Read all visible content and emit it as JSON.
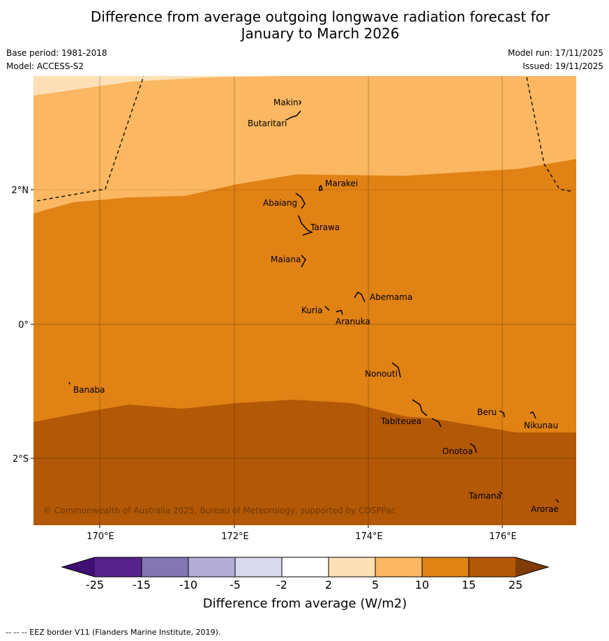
{
  "title_line1": "Difference from average outgoing longwave radiation forecast for",
  "title_line2": "January to March 2026",
  "base_period": "Base period: 1981-2018",
  "model": "Model: ACCESS-S2",
  "model_run": "Model run: 17/11/2025",
  "issued": "Issued: 19/11/2025",
  "copyright": "© Commonwealth of Australia 2025, Bureau of Meteorology, supported by COSPPac",
  "lon_ticks": [
    "170°E",
    "172°E",
    "174°E",
    "176°E"
  ],
  "lat_ticks": [
    "2°N",
    "0°",
    "2°S"
  ],
  "places": [
    {
      "name": "Makin"
    },
    {
      "name": "Butaritari"
    },
    {
      "name": "Marakei"
    },
    {
      "name": "Abaiang"
    },
    {
      "name": "Tarawa"
    },
    {
      "name": "Maiana"
    },
    {
      "name": "Abemama"
    },
    {
      "name": "Kuria"
    },
    {
      "name": "Aranuka"
    },
    {
      "name": "Nonouti"
    },
    {
      "name": "Banaba"
    },
    {
      "name": "Beru"
    },
    {
      "name": "Tabiteuea"
    },
    {
      "name": "Nikunau"
    },
    {
      "name": "Onotoa"
    },
    {
      "name": "Tamana"
    },
    {
      "name": "Arorae"
    }
  ],
  "colorbar": {
    "label": "Difference from average (W/m2)",
    "ticks": [
      "-25",
      "-15",
      "-10",
      "-5",
      "-2",
      "2",
      "5",
      "10",
      "15",
      "25"
    ],
    "colors": [
      "#3f0f72",
      "#56238c",
      "#8277b0",
      "#b3acd5",
      "#d9d9ec",
      "#ffffff",
      "#fee0b6",
      "#fbb761",
      "#e08214",
      "#b35806",
      "#7f3b08"
    ]
  },
  "field_colors": {
    "band_2_5": "#fee0b6",
    "band_5_10": "#fbb761",
    "band_10_15": "#e08214",
    "band_15_25": "#b35806"
  },
  "footnote": "--  --  -- EEZ border V11 (Flanders Marine Institute, 2019)."
}
